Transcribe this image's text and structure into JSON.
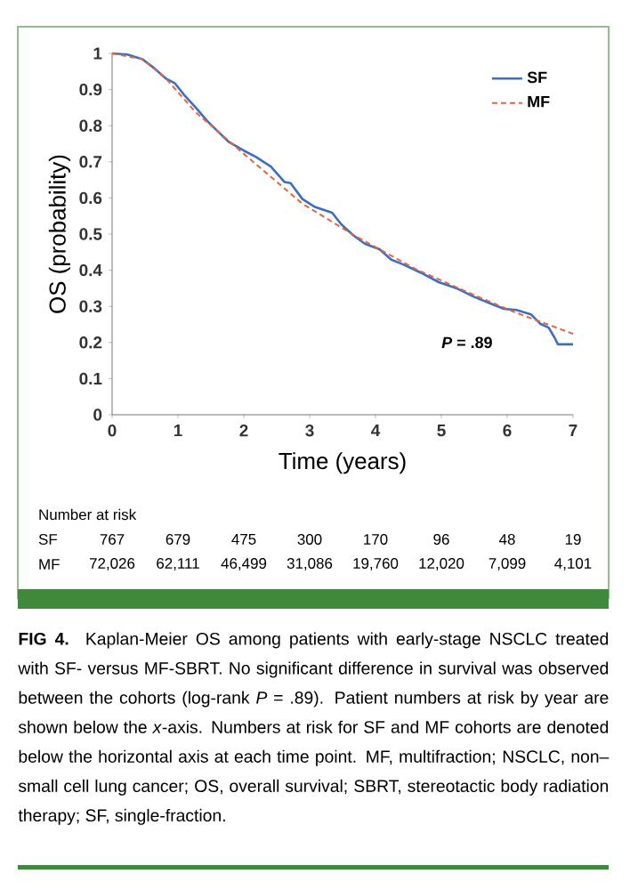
{
  "chart_data": {
    "type": "line",
    "xlabel": "Time (years)",
    "ylabel": "OS (probability)",
    "xlim": [
      0,
      7
    ],
    "ylim": [
      0,
      1
    ],
    "xticks": [
      0,
      1,
      2,
      3,
      4,
      5,
      6,
      7
    ],
    "yticks": [
      0,
      0.1,
      0.2,
      0.3,
      0.4,
      0.5,
      0.6,
      0.7,
      0.8,
      0.9,
      1
    ],
    "grid": false,
    "legend": "top right",
    "series": [
      {
        "name": "SF",
        "color": "#3a6fc4",
        "line_style": "solid",
        "x": [
          0,
          0.23,
          0.46,
          0.64,
          0.82,
          0.95,
          1.09,
          1.27,
          1.45,
          1.63,
          1.77,
          2.0,
          2.18,
          2.41,
          2.62,
          2.71,
          2.89,
          3.07,
          3.34,
          3.48,
          3.66,
          3.84,
          4.06,
          4.24,
          4.42,
          4.69,
          4.96,
          5.23,
          5.5,
          5.77,
          5.95,
          6.14,
          6.36,
          6.5,
          6.63,
          6.72,
          6.77,
          7.0
        ],
        "values": [
          1.0,
          0.997,
          0.984,
          0.959,
          0.93,
          0.918,
          0.886,
          0.85,
          0.812,
          0.78,
          0.755,
          0.731,
          0.714,
          0.687,
          0.644,
          0.641,
          0.597,
          0.576,
          0.559,
          0.527,
          0.497,
          0.473,
          0.458,
          0.429,
          0.416,
          0.393,
          0.367,
          0.35,
          0.326,
          0.306,
          0.293,
          0.29,
          0.278,
          0.252,
          0.241,
          0.213,
          0.195,
          0.195
        ]
      },
      {
        "name": "MF",
        "color": "#e8643c",
        "line_style": "dashed",
        "x": [
          0,
          0.46,
          0.82,
          1.27,
          2.0,
          2.89,
          3.7,
          4.6,
          5.5,
          6.14,
          7.0
        ],
        "values": [
          1.0,
          0.984,
          0.93,
          0.837,
          0.722,
          0.584,
          0.494,
          0.404,
          0.331,
          0.282,
          0.224
        ]
      }
    ],
    "annotations": [
      "*P* = .89",
      "Number at risk",
      "SF",
      "767",
      "679",
      "475",
      "300",
      "170",
      "96",
      "48",
      "19",
      "MF",
      "72,026",
      "62,111",
      "46,499",
      "31,086",
      "19,760",
      "12,020",
      "7,099",
      "4,101",
      "**FIG 4.** Kaplan-Meier OS among patients with early-stage NSCLC treated with SF- versus MF-SBRT. No significant difference in survival was observed between the cohorts (log-rank *P* = .89). Patient numbers at risk by year are shown below the *x*-axis. Numbers at risk for SF and MF cohorts are denoted below the horizontal axis at each time point. MF, multifraction; NSCLC, non–small cell lung cancer; OS, overall survival; SBRT, stereotactic body radiation therapy; SF, single-fraction."
    ]
  }
}
